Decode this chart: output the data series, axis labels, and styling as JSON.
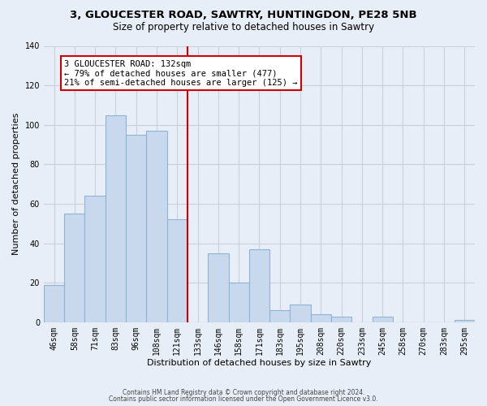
{
  "title": "3, GLOUCESTER ROAD, SAWTRY, HUNTINGDON, PE28 5NB",
  "subtitle": "Size of property relative to detached houses in Sawtry",
  "xlabel": "Distribution of detached houses by size in Sawtry",
  "ylabel": "Number of detached properties",
  "bar_labels": [
    "46sqm",
    "58sqm",
    "71sqm",
    "83sqm",
    "96sqm",
    "108sqm",
    "121sqm",
    "133sqm",
    "146sqm",
    "158sqm",
    "171sqm",
    "183sqm",
    "195sqm",
    "208sqm",
    "220sqm",
    "233sqm",
    "245sqm",
    "258sqm",
    "270sqm",
    "283sqm",
    "295sqm"
  ],
  "bar_values": [
    19,
    55,
    64,
    105,
    95,
    97,
    52,
    0,
    35,
    20,
    37,
    6,
    9,
    4,
    3,
    0,
    3,
    0,
    0,
    0,
    1
  ],
  "bar_color": "#c8d9ee",
  "bar_edge_color": "#8fb3d4",
  "vline_index": 7,
  "vline_color": "#cc0000",
  "annotation_title": "3 GLOUCESTER ROAD: 132sqm",
  "annotation_line1": "← 79% of detached houses are smaller (477)",
  "annotation_line2": "21% of semi-detached houses are larger (125) →",
  "annotation_box_facecolor": "#ffffff",
  "annotation_box_edgecolor": "#cc0000",
  "ylim": [
    0,
    140
  ],
  "yticks": [
    0,
    20,
    40,
    60,
    80,
    100,
    120,
    140
  ],
  "footer1": "Contains HM Land Registry data © Crown copyright and database right 2024.",
  "footer2": "Contains public sector information licensed under the Open Government Licence v3.0.",
  "bg_color": "#e8eef8",
  "grid_color": "#c8d0dc",
  "title_fontsize": 9.5,
  "subtitle_fontsize": 8.5,
  "axis_label_fontsize": 8,
  "tick_fontsize": 7,
  "annotation_fontsize": 7.5,
  "footer_fontsize": 5.5
}
